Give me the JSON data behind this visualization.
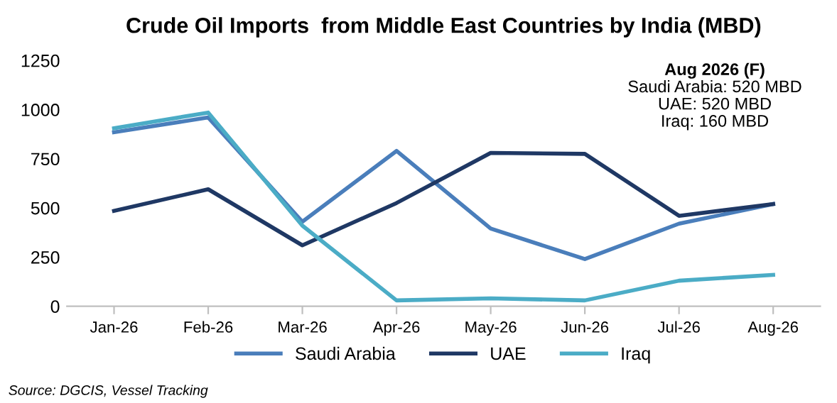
{
  "chart_data": {
    "type": "line",
    "title": "Crude Oil Imports  from Middle East Countries by India (MBD)",
    "categories": [
      "Jan-26",
      "Feb-26",
      "Mar-26",
      "Apr-26",
      "May-26",
      "Jun-26",
      "Jul-26",
      "Aug-26"
    ],
    "series": [
      {
        "name": "Saudi Arabia",
        "color": "#4a7ebb",
        "values": [
          885,
          960,
          430,
          790,
          395,
          240,
          420,
          520
        ]
      },
      {
        "name": "UAE",
        "color": "#1f3864",
        "values": [
          485,
          595,
          310,
          525,
          780,
          775,
          460,
          520
        ]
      },
      {
        "name": "Iraq",
        "color": "#4bacc6",
        "values": [
          905,
          985,
          410,
          30,
          40,
          30,
          130,
          160
        ]
      }
    ],
    "ylim": [
      0,
      1250
    ],
    "yticks": [
      0,
      250,
      500,
      750,
      1000,
      1250
    ],
    "grid": false,
    "legend": "bottom",
    "annotations": [
      "Aug 2026 (F)",
      "Saudi Arabia: 520 MBD",
      "UAE: 520 MBD",
      "Iraq: 160 MBD",
      "Source: DGCIS, Vessel Tracking"
    ]
  }
}
